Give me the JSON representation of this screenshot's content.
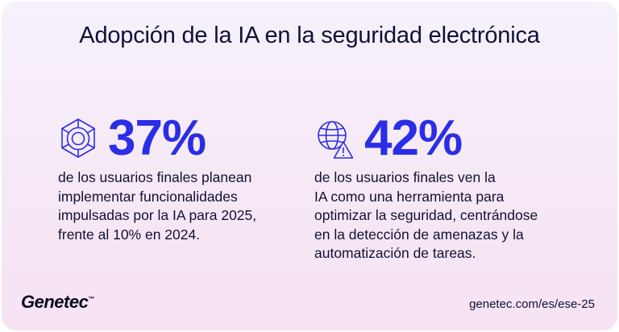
{
  "title": "Adopción de la IA en la seguridad electrónica",
  "stats": [
    {
      "value": "37%",
      "icon": "hexagon-camera-icon",
      "description": "de los usuarios finales planean\nimplementar funcionalidades\nimpulsadas por la IA para 2025,\nfrente al 10% en 2024."
    },
    {
      "value": "42%",
      "icon": "globe-warning-icon",
      "description": "de los usuarios finales ven la\nIA como una herramienta para\noptimizar la seguridad, centrándose\nen la detección de amenazas y la\nautomatización de tareas."
    }
  ],
  "footer": {
    "logo": "Genetec",
    "logo_tm": "™",
    "url": "genetec.com/es/ese-25"
  },
  "colors": {
    "accent": "#2a2ee6",
    "text": "#0f1237"
  }
}
